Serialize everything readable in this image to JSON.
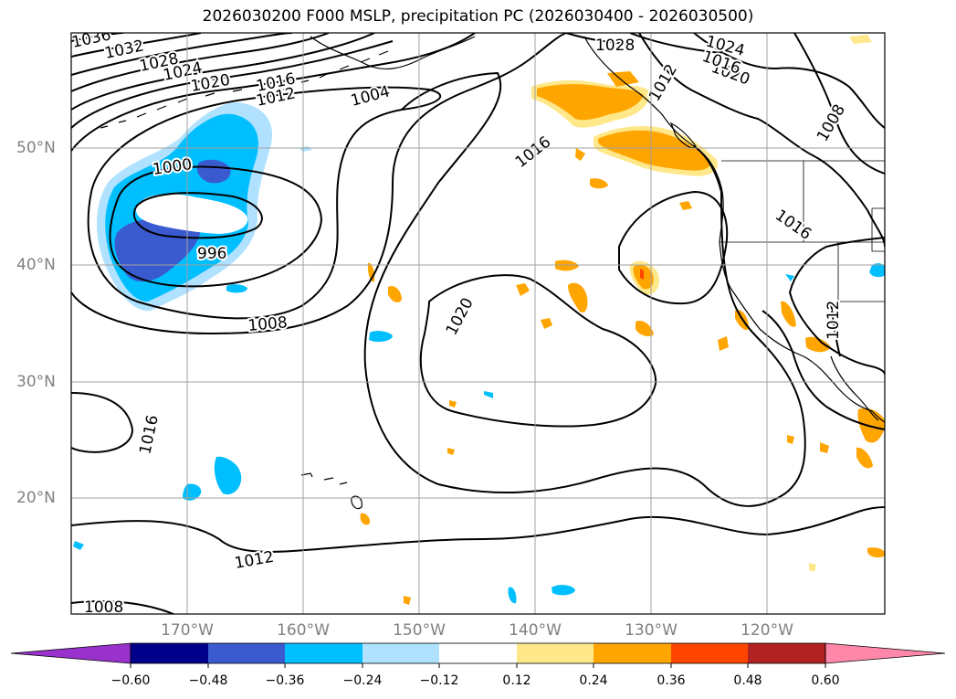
{
  "title": "2026030200 F000 MSLP, precipitation PC (2026030400 - 2026030500)",
  "longitude_labels": [
    "170°W",
    "160°W",
    "150°W",
    "140°W",
    "130°W",
    "120°W"
  ],
  "latitude_labels": [
    "50°N",
    "40°N",
    "30°N",
    "20°N"
  ],
  "contour_labels": [
    "1036",
    "1032",
    "1028",
    "1024",
    "1020",
    "1016",
    "1012",
    "1004",
    "1000",
    "996",
    "1008",
    "1020",
    "1016",
    "1016",
    "1012",
    "1008",
    "1028",
    "1024",
    "1020",
    "1016",
    "1016",
    "1012",
    "1008",
    "1012"
  ],
  "colorbar": {
    "ticks": [
      "−0.60",
      "−0.48",
      "−0.36",
      "−0.24",
      "−0.12",
      "0.12",
      "0.24",
      "0.36",
      "0.48",
      "0.60"
    ],
    "colors": [
      "#9932cc",
      "#00008b",
      "#3a5bd0",
      "#00bfff",
      "#b0e2ff",
      "#ffffff",
      "#ffe88a",
      "#ffa500",
      "#ff4500",
      "#b22222",
      "#ff88aa"
    ]
  }
}
